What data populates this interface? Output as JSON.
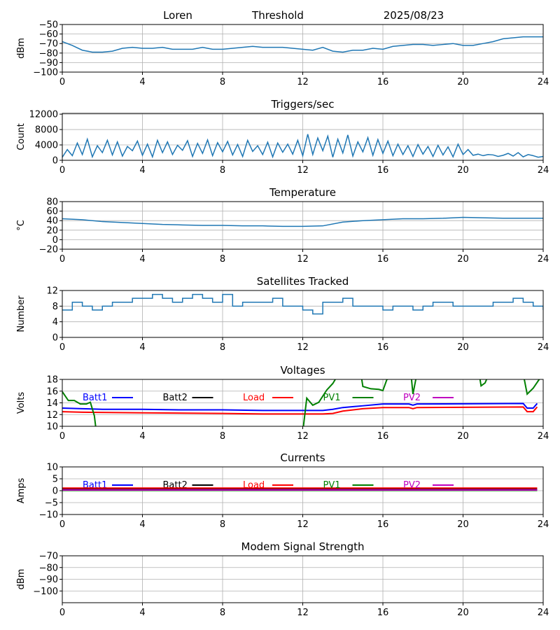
{
  "header": {
    "site": "Loren",
    "label": "Threshold",
    "date": "2025/08/23"
  },
  "chart_data": [
    {
      "id": "signal",
      "type": "line",
      "title": "",
      "ylabel": "dBm",
      "xlim": [
        0,
        24
      ],
      "ylim": [
        -100,
        -50
      ],
      "xticks": [
        0,
        4,
        8,
        12,
        16,
        20,
        24
      ],
      "yticks": [
        -100,
        -90,
        -80,
        -70,
        -60,
        -50
      ],
      "grid": true,
      "series": [
        {
          "name": "signal",
          "color": "#1f77b4",
          "step": 0.5,
          "values": [
            -68,
            -72,
            -77,
            -79,
            -79,
            -78,
            -75,
            -74,
            -75,
            -75,
            -74,
            -76,
            -76,
            -76,
            -74,
            -76,
            -76,
            -75,
            -74,
            -73,
            -74,
            -74,
            -74,
            -75,
            -76,
            -77,
            -74,
            -78,
            -79,
            -77,
            -77,
            -75,
            -76,
            -73,
            -72,
            -71,
            -71,
            -72,
            -71,
            -70,
            -72,
            -72,
            -70,
            -68,
            -65,
            -64,
            -63,
            -63,
            -63
          ]
        }
      ]
    },
    {
      "id": "triggers",
      "type": "line",
      "title": "Triggers/sec",
      "ylabel": "Count",
      "xlim": [
        0,
        24
      ],
      "ylim": [
        0,
        12200
      ],
      "xticks": [
        0,
        4,
        8,
        12,
        16,
        20,
        24
      ],
      "yticks": [
        0,
        4000,
        8000,
        12000
      ],
      "grid": true,
      "series": [
        {
          "name": "triggers",
          "color": "#1f77b4",
          "step": 0.25,
          "values": [
            800,
            2800,
            1200,
            4500,
            1500,
            5500,
            900,
            3800,
            2000,
            5200,
            1400,
            4800,
            1100,
            3600,
            2500,
            5000,
            1300,
            4200,
            900,
            5200,
            2000,
            4800,
            1500,
            3900,
            2600,
            5100,
            1000,
            4400,
            1800,
            5300,
            1200,
            4600,
            2200,
            4900,
            1400,
            4100,
            1000,
            5200,
            2300,
            3800,
            1500,
            4700,
            900,
            4500,
            2100,
            4200,
            1600,
            5200,
            1200,
            6800,
            1500,
            5800,
            2500,
            6300,
            800,
            5500,
            1900,
            6600,
            1100,
            4800,
            2200,
            5900,
            1300,
            5400,
            1800,
            5000,
            1200,
            4200,
            1500,
            3800,
            1000,
            4100,
            1600,
            3600,
            1000,
            3900,
            1400,
            3500,
            900,
            4200,
            1500,
            2800,
            1300,
            1600,
            1200,
            1500,
            1400,
            1000,
            1300,
            1800,
            1100,
            2000,
            900,
            1500,
            1200,
            800,
            1000
          ]
        }
      ]
    },
    {
      "id": "temperature",
      "type": "line",
      "title": "Temperature",
      "ylabel": "°C",
      "xlim": [
        0,
        24
      ],
      "ylim": [
        -20,
        80
      ],
      "xticks": [
        0,
        4,
        8,
        12,
        16,
        20,
        24
      ],
      "yticks": [
        -20,
        0,
        20,
        40,
        60,
        80
      ],
      "grid": true,
      "series": [
        {
          "name": "temperature",
          "color": "#1f77b4",
          "step": 1,
          "values": [
            44,
            42,
            38,
            36,
            34,
            32,
            31,
            30,
            30,
            29,
            29,
            28,
            28,
            29,
            37,
            40,
            42,
            44,
            44,
            45,
            47,
            46,
            45,
            45,
            45
          ]
        }
      ]
    },
    {
      "id": "satellites",
      "type": "line",
      "title": "Satellites Tracked",
      "ylabel": "Number",
      "xlim": [
        0,
        24
      ],
      "ylim": [
        0,
        12
      ],
      "xticks": [
        0,
        4,
        8,
        12,
        16,
        20,
        24
      ],
      "yticks": [
        0,
        4,
        8,
        12
      ],
      "grid": true,
      "series": [
        {
          "name": "satellites",
          "color": "#1f77b4",
          "step": 0.5,
          "stepped": true,
          "values": [
            7,
            9,
            8,
            7,
            8,
            9,
            9,
            10,
            10,
            11,
            10,
            9,
            10,
            11,
            10,
            9,
            11,
            8,
            9,
            9,
            9,
            10,
            8,
            8,
            7,
            6,
            9,
            9,
            10,
            8,
            8,
            8,
            7,
            8,
            8,
            7,
            8,
            9,
            9,
            8,
            8,
            8,
            8,
            9,
            9,
            10,
            9,
            8,
            7
          ]
        }
      ]
    },
    {
      "id": "voltages",
      "type": "line",
      "title": "Voltages",
      "ylabel": "Volts",
      "xlim": [
        0,
        24
      ],
      "ylim": [
        10,
        18
      ],
      "xticks": [
        0,
        4,
        8,
        12,
        16,
        20,
        24
      ],
      "yticks": [
        10,
        12,
        14,
        16,
        18
      ],
      "grid": true,
      "legend": "top, horizontal",
      "series": [
        {
          "name": "Batt1",
          "color": "#0000ff",
          "points": [
            [
              0,
              13.1
            ],
            [
              1,
              13.0
            ],
            [
              2,
              12.9
            ],
            [
              4,
              12.9
            ],
            [
              6,
              12.8
            ],
            [
              8,
              12.8
            ],
            [
              10,
              12.7
            ],
            [
              13,
              12.7
            ],
            [
              13.5,
              12.9
            ],
            [
              14,
              13.2
            ],
            [
              15,
              13.5
            ],
            [
              16,
              13.8
            ],
            [
              17.3,
              13.8
            ],
            [
              17.5,
              13.6
            ],
            [
              17.7,
              13.8
            ],
            [
              23,
              13.9
            ],
            [
              23.2,
              13.1
            ],
            [
              23.5,
              13.1
            ],
            [
              23.7,
              13.9
            ]
          ]
        },
        {
          "name": "Batt2",
          "color": "#000000",
          "points": []
        },
        {
          "name": "Load",
          "color": "#ff0000",
          "points": [
            [
              0,
              12.5
            ],
            [
              1,
              12.4
            ],
            [
              4,
              12.3
            ],
            [
              8,
              12.2
            ],
            [
              10,
              12.1
            ],
            [
              13,
              12.1
            ],
            [
              13.5,
              12.2
            ],
            [
              14,
              12.6
            ],
            [
              15,
              13.0
            ],
            [
              16,
              13.2
            ],
            [
              17.3,
              13.2
            ],
            [
              17.5,
              13.0
            ],
            [
              17.7,
              13.2
            ],
            [
              23,
              13.3
            ],
            [
              23.2,
              12.5
            ],
            [
              23.5,
              12.5
            ],
            [
              23.7,
              13.3
            ]
          ]
        },
        {
          "name": "PV1",
          "color": "#008000",
          "points": [
            [
              0,
              15.9
            ],
            [
              0.3,
              14.4
            ],
            [
              0.6,
              14.4
            ],
            [
              0.9,
              13.8
            ],
            [
              1.2,
              13.8
            ],
            [
              1.4,
              14.1
            ],
            [
              1.6,
              11.8
            ],
            [
              1.7,
              9
            ],
            [
              12.0,
              9
            ],
            [
              12.2,
              14.8
            ],
            [
              12.5,
              13.6
            ],
            [
              12.8,
              14.1
            ],
            [
              13.2,
              16.2
            ],
            [
              13.5,
              17.3
            ],
            [
              13.8,
              19
            ],
            [
              14.9,
              19
            ],
            [
              15.0,
              16.8
            ],
            [
              15.4,
              16.4
            ],
            [
              15.8,
              16.3
            ],
            [
              16.0,
              16.1
            ],
            [
              16.2,
              18
            ],
            [
              17.4,
              19
            ],
            [
              17.5,
              15.5
            ],
            [
              17.7,
              19
            ],
            [
              20.8,
              19
            ],
            [
              20.9,
              16.9
            ],
            [
              21.1,
              17.4
            ],
            [
              21.3,
              19
            ],
            [
              23.0,
              19
            ],
            [
              23.2,
              15.5
            ],
            [
              23.5,
              16.5
            ],
            [
              23.8,
              18
            ]
          ]
        },
        {
          "name": "PV2",
          "color": "#bf00bf",
          "points": []
        }
      ]
    },
    {
      "id": "currents",
      "type": "line",
      "title": "Currents",
      "ylabel": "Amps",
      "xlim": [
        0,
        24
      ],
      "ylim": [
        -10,
        10
      ],
      "xticks": [
        0,
        4,
        8,
        12,
        16,
        20,
        24
      ],
      "yticks": [
        -10,
        -5,
        0,
        5,
        10
      ],
      "grid": true,
      "legend": "top, horizontal",
      "series": [
        {
          "name": "Batt1",
          "color": "#0000ff",
          "points": []
        },
        {
          "name": "Batt2",
          "color": "#000000",
          "points": [
            [
              0,
              0.6
            ],
            [
              23.7,
              0.6
            ]
          ]
        },
        {
          "name": "Load",
          "color": "#ff0000",
          "points": [
            [
              0,
              1.1
            ],
            [
              23.7,
              1.1
            ]
          ]
        },
        {
          "name": "PV1",
          "color": "#008000",
          "points": [
            [
              0,
              0.1
            ],
            [
              23.7,
              0.1
            ]
          ]
        },
        {
          "name": "PV2",
          "color": "#bf00bf",
          "points": [
            [
              0,
              0.3
            ],
            [
              23.7,
              0.3
            ]
          ]
        }
      ]
    },
    {
      "id": "modem",
      "type": "line",
      "title": "Modem Signal Strength",
      "ylabel": "dBm",
      "xlim": [
        0,
        24
      ],
      "ylim": [
        -110,
        -70
      ],
      "xticks": [
        0,
        4,
        8,
        12,
        16,
        20,
        24
      ],
      "yticks": [
        -100,
        -90,
        -80,
        -70
      ],
      "grid": true,
      "series": []
    }
  ]
}
